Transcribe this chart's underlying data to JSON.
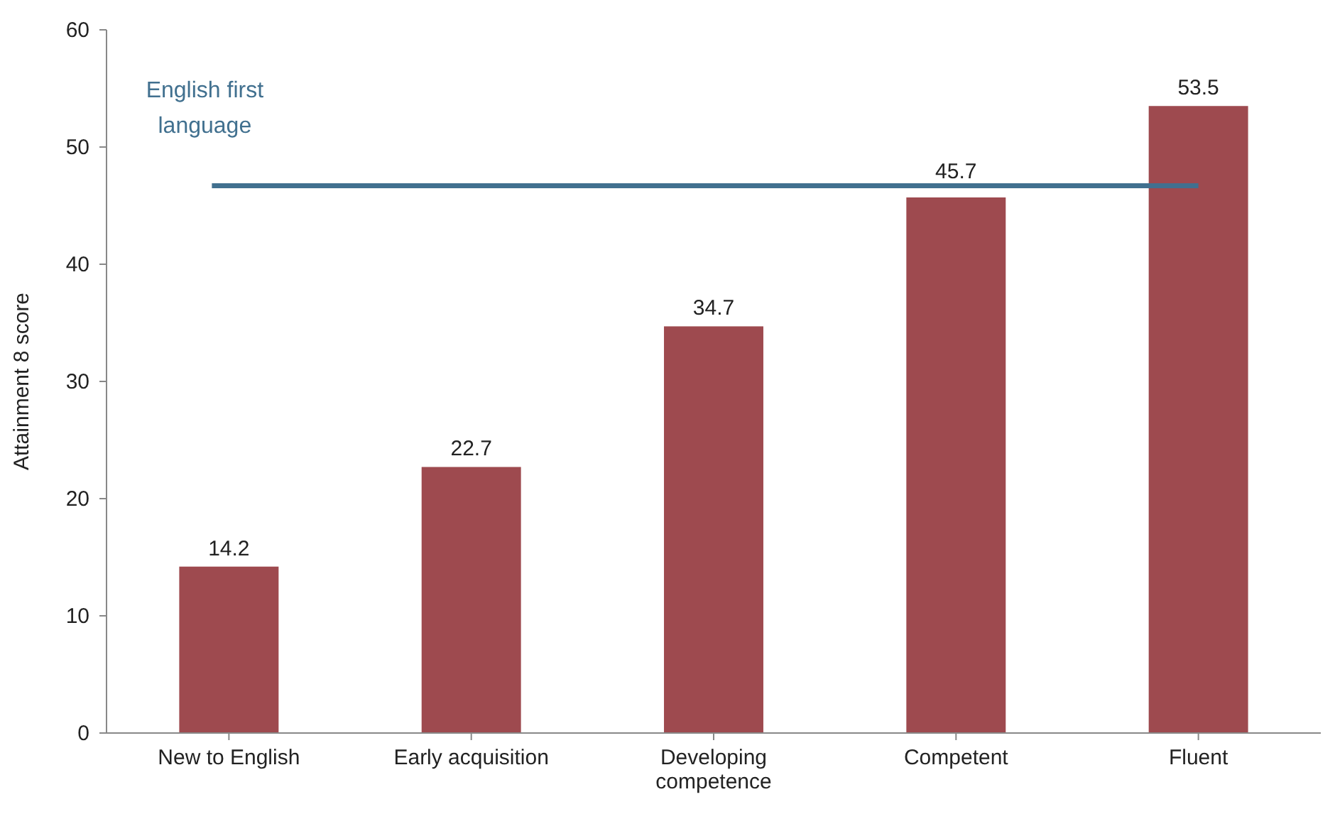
{
  "chart_data": {
    "type": "bar",
    "ylabel": "Attainment 8 score",
    "categories": [
      "New to English",
      "Early acquisition",
      "Developing competence",
      "Competent",
      "Fluent"
    ],
    "values": [
      14.2,
      22.7,
      34.7,
      45.7,
      53.5
    ],
    "color": "#9e4a4f",
    "ylim": [
      0,
      60
    ],
    "yticks": [
      0,
      10,
      20,
      30,
      40,
      50,
      60
    ],
    "grid": false,
    "data_labels": true,
    "ref_lines": [
      {
        "axis": "y",
        "value": 46.7,
        "label": "English first language",
        "color": "#41708f",
        "line_style": "solid"
      }
    ]
  }
}
